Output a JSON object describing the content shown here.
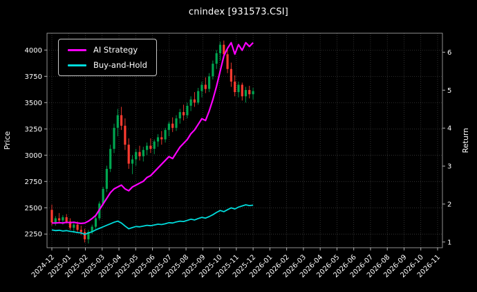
{
  "title": "cnindex [931573.CSI]",
  "legend": {
    "items": [
      {
        "label": "AI Strategy",
        "color": "#ff00ff"
      },
      {
        "label": "Buy-and-Hold",
        "color": "#00dddd"
      }
    ]
  },
  "axes": {
    "left_label": "Price",
    "right_label": "Return",
    "price_ticks": [
      2250,
      2500,
      2750,
      3000,
      3250,
      3500,
      3750,
      4000
    ],
    "return_ticks": [
      1,
      2,
      3,
      4,
      5,
      6
    ],
    "x_ticks": [
      "2024-12",
      "2025-01",
      "2025-02",
      "2025-03",
      "2025-04",
      "2025-05",
      "2025-06",
      "2025-07",
      "2025-08",
      "2025-09",
      "2025-10",
      "2025-11",
      "2025-12",
      "2026-01",
      "2026-02",
      "2026-03",
      "2026-04",
      "2026-05",
      "2026-06",
      "2026-07",
      "2026-08",
      "2026-09",
      "2026-10",
      "2026-11"
    ]
  },
  "chart_data": {
    "type": "candlestick+line",
    "title": "cnindex [931573.CSI]",
    "xlabel": "",
    "ylabel_left": "Price",
    "ylabel_right": "Return",
    "grid": true,
    "legend_position": "upper-left",
    "price_ylim": [
      2120,
      4160
    ],
    "return_ylim": [
      0.85,
      6.5
    ],
    "end_tick": 12,
    "up_color": "#00a650",
    "down_color": "#ff3b30",
    "candles_note": "weekly OHLC, 2024-12 through 2025-12, price axis",
    "candles": [
      [
        2480,
        2530,
        2330,
        2360
      ],
      [
        2360,
        2420,
        2330,
        2400
      ],
      [
        2400,
        2450,
        2360,
        2380
      ],
      [
        2380,
        2430,
        2340,
        2410
      ],
      [
        2410,
        2440,
        2350,
        2370
      ],
      [
        2370,
        2400,
        2290,
        2310
      ],
      [
        2310,
        2360,
        2260,
        2340
      ],
      [
        2340,
        2370,
        2270,
        2290
      ],
      [
        2290,
        2330,
        2240,
        2270
      ],
      [
        2270,
        2300,
        2170,
        2200
      ],
      [
        2200,
        2290,
        2160,
        2270
      ],
      [
        2270,
        2340,
        2250,
        2320
      ],
      [
        2320,
        2420,
        2300,
        2400
      ],
      [
        2400,
        2560,
        2380,
        2540
      ],
      [
        2540,
        2700,
        2520,
        2680
      ],
      [
        2680,
        2900,
        2650,
        2870
      ],
      [
        2870,
        3100,
        2840,
        3060
      ],
      [
        3060,
        3300,
        3020,
        3260
      ],
      [
        3260,
        3440,
        3180,
        3380
      ],
      [
        3380,
        3460,
        3240,
        3280
      ],
      [
        3280,
        3350,
        3050,
        3100
      ],
      [
        3100,
        3160,
        2870,
        2920
      ],
      [
        2920,
        3000,
        2820,
        2960
      ],
      [
        2960,
        3060,
        2900,
        3030
      ],
      [
        3030,
        3090,
        2950,
        2990
      ],
      [
        2990,
        3080,
        2940,
        3050
      ],
      [
        3050,
        3120,
        3000,
        3090
      ],
      [
        3090,
        3160,
        3020,
        3060
      ],
      [
        3060,
        3150,
        3010,
        3130
      ],
      [
        3130,
        3200,
        3080,
        3170
      ],
      [
        3170,
        3230,
        3100,
        3150
      ],
      [
        3150,
        3260,
        3120,
        3240
      ],
      [
        3240,
        3320,
        3180,
        3300
      ],
      [
        3300,
        3360,
        3220,
        3260
      ],
      [
        3260,
        3380,
        3230,
        3350
      ],
      [
        3350,
        3440,
        3300,
        3410
      ],
      [
        3410,
        3480,
        3330,
        3380
      ],
      [
        3380,
        3500,
        3350,
        3470
      ],
      [
        3470,
        3560,
        3420,
        3530
      ],
      [
        3530,
        3600,
        3460,
        3500
      ],
      [
        3500,
        3640,
        3480,
        3610
      ],
      [
        3610,
        3700,
        3550,
        3670
      ],
      [
        3670,
        3740,
        3590,
        3630
      ],
      [
        3630,
        3780,
        3600,
        3750
      ],
      [
        3750,
        3900,
        3720,
        3870
      ],
      [
        3870,
        4000,
        3820,
        3970
      ],
      [
        3970,
        4080,
        3900,
        4050
      ],
      [
        4050,
        4090,
        3920,
        3960
      ],
      [
        3960,
        4000,
        3780,
        3820
      ],
      [
        3820,
        3880,
        3650,
        3700
      ],
      [
        3700,
        3760,
        3560,
        3600
      ],
      [
        3600,
        3700,
        3550,
        3670
      ],
      [
        3670,
        3690,
        3520,
        3560
      ],
      [
        3560,
        3650,
        3500,
        3620
      ],
      [
        3620,
        3660,
        3540,
        3580
      ],
      [
        3580,
        3640,
        3530,
        3610
      ]
    ],
    "series": [
      {
        "name": "AI Strategy",
        "axis": "return",
        "color": "#ff00ff",
        "width": 2.2,
        "values": [
          1.5,
          1.5,
          1.51,
          1.5,
          1.52,
          1.51,
          1.52,
          1.5,
          1.49,
          1.5,
          1.55,
          1.62,
          1.7,
          1.85,
          2.0,
          2.15,
          2.3,
          2.4,
          2.45,
          2.5,
          2.4,
          2.35,
          2.45,
          2.5,
          2.55,
          2.6,
          2.7,
          2.75,
          2.85,
          2.95,
          3.05,
          3.15,
          3.25,
          3.2,
          3.35,
          3.5,
          3.6,
          3.7,
          3.85,
          3.95,
          4.1,
          4.25,
          4.2,
          4.45,
          4.75,
          5.1,
          5.5,
          5.9,
          6.1,
          6.25,
          5.95,
          6.2,
          6.05,
          6.25,
          6.15,
          6.25
        ]
      },
      {
        "name": "Buy-and-Hold",
        "axis": "return",
        "color": "#00dddd",
        "width": 1.8,
        "values": [
          1.32,
          1.3,
          1.31,
          1.29,
          1.3,
          1.28,
          1.27,
          1.25,
          1.24,
          1.2,
          1.24,
          1.27,
          1.32,
          1.36,
          1.4,
          1.44,
          1.48,
          1.52,
          1.55,
          1.5,
          1.42,
          1.35,
          1.38,
          1.41,
          1.4,
          1.42,
          1.44,
          1.43,
          1.45,
          1.47,
          1.46,
          1.48,
          1.51,
          1.5,
          1.53,
          1.55,
          1.54,
          1.57,
          1.6,
          1.58,
          1.62,
          1.65,
          1.63,
          1.67,
          1.72,
          1.78,
          1.83,
          1.8,
          1.85,
          1.9,
          1.87,
          1.92,
          1.95,
          1.98,
          1.96,
          1.97
        ]
      }
    ]
  }
}
